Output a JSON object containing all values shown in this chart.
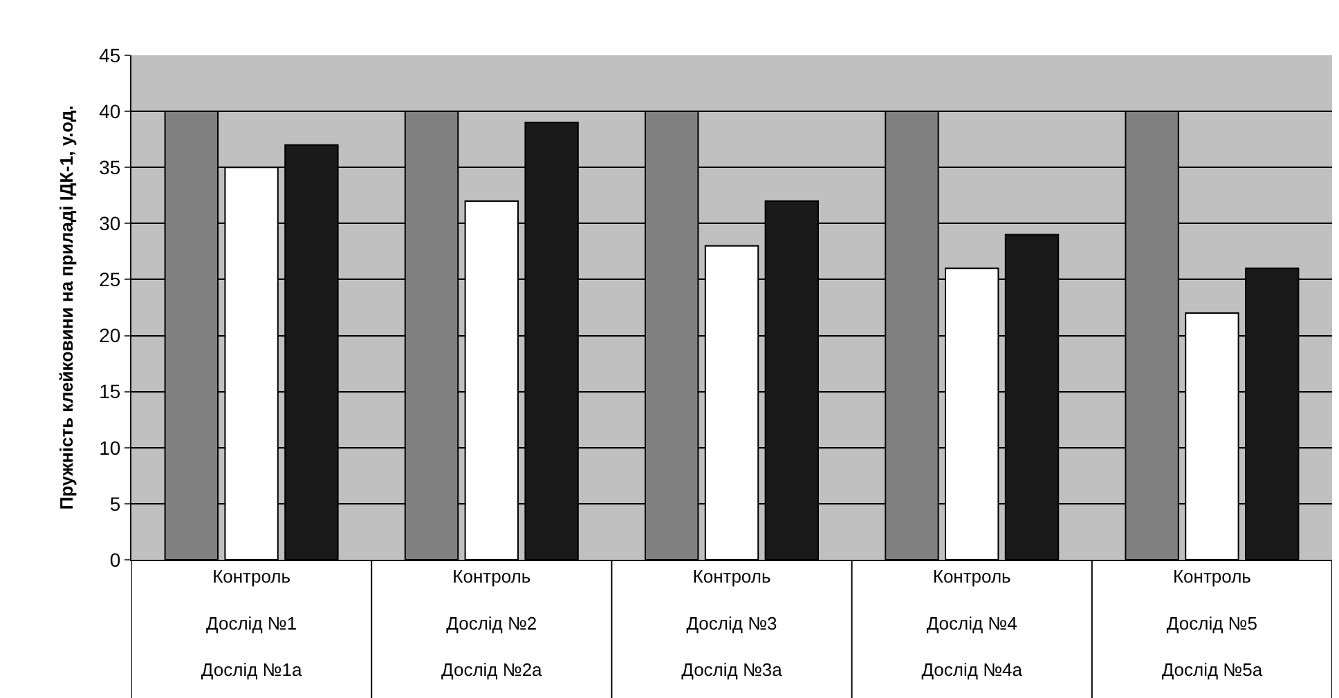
{
  "chart_data": {
    "type": "bar",
    "ylabel": "Пружність клейковини на приладі ІДК-1, у.од.",
    "categories": [
      "Контроль\nДослід №1\nДослід №1а",
      "Контроль\nДослід №2\nДослід №2а",
      "Контроль\nДослід №3\nДослід №3а",
      "Контроль\nДослід №4\nДослід №4а",
      "Контроль\nДослід №5\nДослід №5а"
    ],
    "series": [
      {
        "color": "#808080",
        "values": [
          40,
          40,
          40,
          40,
          40
        ]
      },
      {
        "color": "#ffffff",
        "values": [
          35,
          32,
          28,
          26,
          22
        ]
      },
      {
        "color": "#1a1a1a",
        "values": [
          37,
          39,
          32,
          29,
          26
        ]
      }
    ],
    "ylim": [
      0,
      45
    ],
    "yticks": [
      0,
      5,
      10,
      15,
      20,
      25,
      30,
      35,
      40,
      45
    ],
    "grid": "y"
  }
}
